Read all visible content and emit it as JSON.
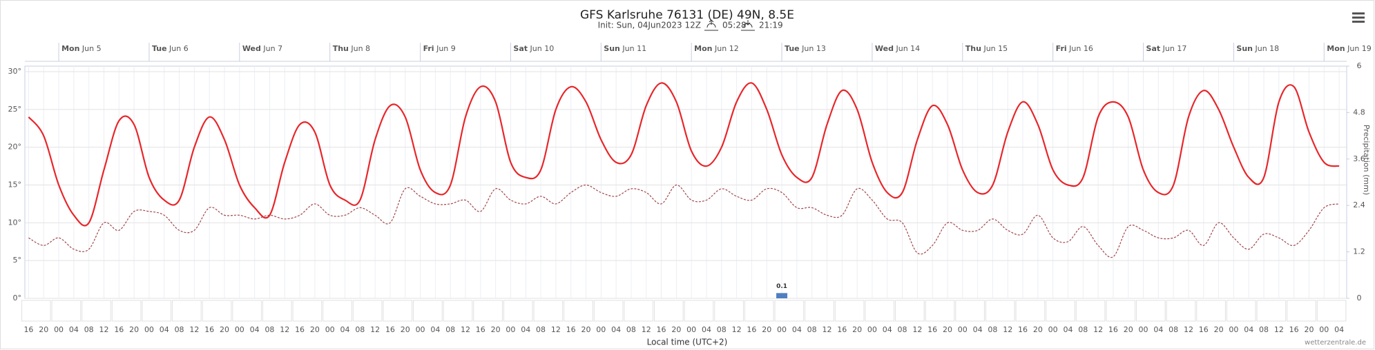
{
  "chart_data": {
    "type": "line",
    "title": "GFS Karlsruhe 76131 (DE) 49N, 8.5E",
    "subtitle": "Init: Sun, 04Jun2023 12Z",
    "sunrise": "05:28",
    "sunset": "21:19",
    "x_label": "Local time (UTC+2)",
    "y2_label": "Precipitation (mm)",
    "credit": "wetterzentrale.de",
    "categories": [
      "16",
      "20",
      "00",
      "04",
      "08",
      "12",
      "16",
      "20",
      "00",
      "04",
      "08",
      "12",
      "16",
      "20",
      "00",
      "04",
      "08",
      "12",
      "16",
      "20",
      "00",
      "04",
      "08",
      "12",
      "16",
      "20",
      "00",
      "04",
      "08",
      "12",
      "16",
      "20",
      "00",
      "04",
      "08",
      "12",
      "16",
      "20",
      "00",
      "04",
      "08",
      "12",
      "16",
      "20",
      "00",
      "04",
      "08",
      "12",
      "16",
      "20",
      "00",
      "04",
      "08",
      "12",
      "16",
      "20",
      "00",
      "04",
      "08",
      "12",
      "16",
      "20",
      "00",
      "04",
      "08",
      "12",
      "16",
      "20",
      "00",
      "04",
      "08",
      "12",
      "16",
      "20",
      "00",
      "04",
      "08",
      "12",
      "16",
      "20",
      "00",
      "04",
      "08",
      "12",
      "16",
      "20",
      "00",
      "04"
    ],
    "days": [
      {
        "weekday": "Mon",
        "date": "Jun 5"
      },
      {
        "weekday": "Tue",
        "date": "Jun 6"
      },
      {
        "weekday": "Wed",
        "date": "Jun 7"
      },
      {
        "weekday": "Thu",
        "date": "Jun 8"
      },
      {
        "weekday": "Fri",
        "date": "Jun 9"
      },
      {
        "weekday": "Sat",
        "date": "Jun 10"
      },
      {
        "weekday": "Sun",
        "date": "Jun 11"
      },
      {
        "weekday": "Mon",
        "date": "Jun 12"
      },
      {
        "weekday": "Tue",
        "date": "Jun 13"
      },
      {
        "weekday": "Wed",
        "date": "Jun 14"
      },
      {
        "weekday": "Thu",
        "date": "Jun 15"
      },
      {
        "weekday": "Fri",
        "date": "Jun 16"
      },
      {
        "weekday": "Sat",
        "date": "Jun 17"
      },
      {
        "weekday": "Sun",
        "date": "Jun 18"
      },
      {
        "weekday": "Mon",
        "date": "Jun 19"
      }
    ],
    "series": [
      {
        "color": "#e8262a",
        "style": "solid",
        "values": [
          24,
          21.5,
          15,
          11,
          10,
          17,
          23.5,
          23,
          16,
          13,
          13,
          20,
          24,
          21,
          15,
          12,
          11,
          18,
          23,
          22,
          15,
          13,
          13,
          21,
          25.5,
          24,
          17,
          14,
          15,
          24,
          28,
          26,
          18,
          16,
          17,
          25,
          28,
          26,
          21,
          18,
          19,
          25.5,
          28.5,
          26,
          19.5,
          17.5,
          20,
          26,
          28.5,
          25,
          19,
          16,
          16,
          23,
          27.5,
          25,
          18,
          14,
          14,
          21,
          25.5,
          23,
          17,
          14,
          15,
          22,
          26,
          23,
          17,
          15,
          16,
          24,
          26,
          24,
          17,
          14,
          15,
          24,
          27.5,
          25,
          20,
          16,
          16,
          26,
          28,
          22,
          18,
          17.5
        ]
      },
      {
        "color": "#a0454a",
        "style": "dashed",
        "values": [
          8,
          7,
          8,
          6.5,
          6.5,
          10,
          9,
          11.5,
          11.5,
          11,
          9,
          9,
          12,
          11,
          11,
          10.5,
          11,
          10.5,
          11,
          12.5,
          11,
          11,
          12,
          11,
          10,
          14.5,
          13.5,
          12.5,
          12.5,
          13,
          11.5,
          14.5,
          13,
          12.5,
          13.5,
          12.5,
          14,
          15,
          14,
          13.5,
          14.5,
          14,
          12.5,
          15,
          13,
          13,
          14.5,
          13.5,
          13,
          14.5,
          14,
          12,
          12,
          11,
          11,
          14.5,
          13,
          10.5,
          10,
          6,
          7,
          10,
          9,
          9,
          10.5,
          9,
          8.5,
          11,
          8,
          7.5,
          9.5,
          7,
          5.5,
          9.5,
          9,
          8,
          8,
          9,
          7,
          10,
          8,
          6.5,
          8.5,
          8,
          7,
          9,
          12,
          12.5
        ]
      },
      {
        "type": "bar",
        "axis": "y2",
        "color": "#4f7fc0",
        "values": [
          0,
          0,
          0,
          0,
          0,
          0,
          0,
          0,
          0,
          0,
          0,
          0,
          0,
          0,
          0,
          0,
          0,
          0,
          0,
          0,
          0,
          0,
          0,
          0,
          0,
          0,
          0,
          0,
          0,
          0,
          0,
          0,
          0,
          0,
          0,
          0,
          0,
          0,
          0,
          0,
          0,
          0,
          0,
          0,
          0,
          0,
          0,
          0,
          0,
          0,
          0.1,
          0,
          0,
          0,
          0,
          0,
          0,
          0,
          0,
          0,
          0,
          0,
          0,
          0,
          0,
          0,
          0,
          0,
          0,
          0,
          0,
          0,
          0,
          0,
          0,
          0,
          0,
          0,
          0,
          0,
          0,
          0,
          0,
          0,
          0,
          0,
          0,
          0
        ],
        "value_labels": {
          "50": "0.1"
        }
      }
    ],
    "ylim": [
      0,
      30
    ],
    "yticks": [
      {
        "value": 0,
        "label": "0°"
      },
      {
        "value": 5,
        "label": "5°"
      },
      {
        "value": 10,
        "label": "10°"
      },
      {
        "value": 15,
        "label": "15°"
      },
      {
        "value": 20,
        "label": "20°"
      },
      {
        "value": 25,
        "label": "25°"
      },
      {
        "value": 30,
        "label": "30°"
      }
    ],
    "y2lim": [
      0,
      6
    ],
    "y2ticks": [
      0,
      1.2,
      2.4,
      3.6,
      4.8,
      6
    ],
    "grid": true
  }
}
